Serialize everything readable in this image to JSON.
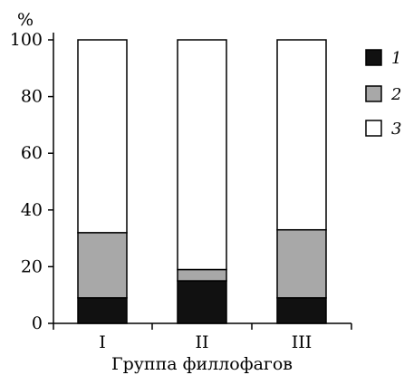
{
  "chart_data": {
    "type": "bar",
    "stacked": true,
    "title": "",
    "xlabel": "Группа филлофагов",
    "ylabel": "%",
    "ylim": [
      0,
      100
    ],
    "yticks": [
      0,
      20,
      40,
      60,
      80,
      100
    ],
    "categories": [
      "I",
      "II",
      "III"
    ],
    "series": [
      {
        "name": "1",
        "color": "#111111",
        "values": [
          9,
          15,
          9
        ]
      },
      {
        "name": "2",
        "color": "#a8a8a8",
        "values": [
          23,
          4,
          24
        ]
      },
      {
        "name": "3",
        "color": "#ffffff",
        "values": [
          68,
          81,
          67
        ]
      }
    ],
    "grid": false,
    "legend_position": "right"
  }
}
